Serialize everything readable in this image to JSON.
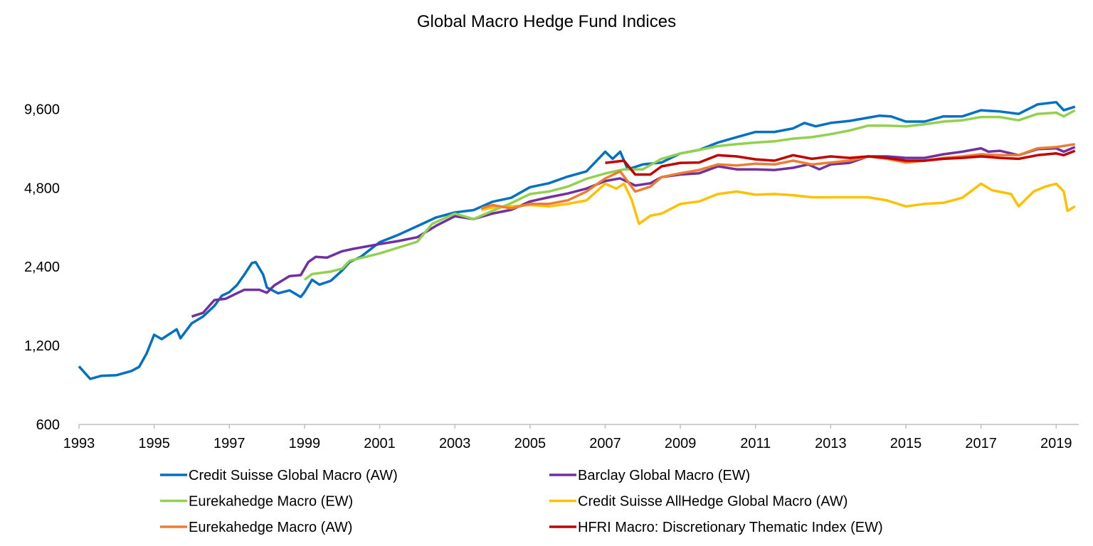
{
  "chart_data": {
    "type": "line",
    "title": "Global Macro Hedge Fund Indices",
    "xlabel": "",
    "ylabel": "",
    "y_scale": "log2",
    "ylim": [
      600,
      15000
    ],
    "xlim": [
      1993,
      2019.6
    ],
    "grid": false,
    "legend_placement": "bottom",
    "y_ticks": [
      600,
      1200,
      2400,
      4800,
      9600
    ],
    "y_tick_labels": [
      "600",
      "1,200",
      "2,400",
      "4,800",
      "9,600"
    ],
    "x_ticks": [
      1993,
      1995,
      1997,
      1999,
      2001,
      2003,
      2005,
      2007,
      2009,
      2011,
      2013,
      2015,
      2017,
      2019
    ],
    "x_tick_labels": [
      "1993",
      "1995",
      "1997",
      "1999",
      "2001",
      "2003",
      "2005",
      "2007",
      "2009",
      "2011",
      "2013",
      "2015",
      "2017",
      "2019"
    ],
    "series": [
      {
        "name": "Credit Suisse Global Macro (AW)",
        "color": "#0070C0",
        "x": [
          1993.0,
          1993.3,
          1993.6,
          1994.0,
          1994.4,
          1994.6,
          1994.8,
          1995.0,
          1995.2,
          1995.6,
          1995.7,
          1996.0,
          1996.3,
          1996.6,
          1996.8,
          1997.0,
          1997.2,
          1997.4,
          1997.6,
          1997.7,
          1997.9,
          1998.0,
          1998.3,
          1998.6,
          1998.9,
          1999.0,
          1999.2,
          1999.4,
          1999.7,
          2000.0,
          2000.2,
          2000.5,
          2001.0,
          2001.5,
          2002.0,
          2002.5,
          2003.0,
          2003.5,
          2004.0,
          2004.5,
          2005.0,
          2005.5,
          2006.0,
          2006.5,
          2007.0,
          2007.2,
          2007.4,
          2007.6,
          2008.0,
          2008.5,
          2009.0,
          2009.5,
          2010.0,
          2010.5,
          2011.0,
          2011.5,
          2012.0,
          2012.3,
          2012.6,
          2013.0,
          2013.5,
          2014.0,
          2014.3,
          2014.6,
          2015.0,
          2015.5,
          2016.0,
          2016.5,
          2017.0,
          2017.5,
          2018.0,
          2018.5,
          2019.0,
          2019.2,
          2019.5
        ],
        "values": [
          1000,
          895,
          920,
          925,
          960,
          995,
          1120,
          1320,
          1270,
          1385,
          1280,
          1460,
          1550,
          1700,
          1860,
          1920,
          2040,
          2240,
          2480,
          2500,
          2240,
          2000,
          1900,
          1950,
          1840,
          1920,
          2140,
          2050,
          2120,
          2320,
          2500,
          2620,
          2980,
          3180,
          3430,
          3700,
          3870,
          3950,
          4250,
          4400,
          4830,
          5000,
          5300,
          5550,
          6600,
          6200,
          6600,
          5650,
          5900,
          6000,
          6500,
          6700,
          7150,
          7500,
          7850,
          7850,
          8100,
          8500,
          8250,
          8500,
          8650,
          8900,
          9060,
          9000,
          8600,
          8600,
          9000,
          9000,
          9500,
          9400,
          9200,
          10000,
          10200,
          9500,
          9800
        ]
      },
      {
        "name": "Barclay Global Macro (EW)",
        "color": "#7030A0",
        "x": [
          1996.0,
          1996.3,
          1996.6,
          1996.9,
          1997.2,
          1997.4,
          1997.8,
          1998.0,
          1998.2,
          1998.6,
          1998.9,
          1999.1,
          1999.3,
          1999.6,
          2000.0,
          2000.3,
          2001.0,
          2001.5,
          2002.0,
          2002.5,
          2003.0,
          2003.5,
          2004.0,
          2004.5,
          2005.0,
          2005.5,
          2006.0,
          2006.5,
          2007.0,
          2007.4,
          2007.8,
          2008.2,
          2008.5,
          2009.0,
          2009.5,
          2010.0,
          2010.5,
          2011.0,
          2011.5,
          2012.0,
          2012.4,
          2012.7,
          2013.0,
          2013.5,
          2014.0,
          2014.5,
          2015.0,
          2015.5,
          2016.0,
          2016.5,
          2017.0,
          2017.2,
          2017.5,
          2018.0,
          2018.5,
          2019.0,
          2019.2,
          2019.5
        ],
        "values": [
          1550,
          1600,
          1790,
          1810,
          1900,
          1960,
          1960,
          1910,
          2040,
          2210,
          2230,
          2500,
          2620,
          2600,
          2750,
          2810,
          2930,
          3010,
          3110,
          3440,
          3740,
          3650,
          3830,
          3960,
          4260,
          4420,
          4570,
          4770,
          5100,
          5220,
          4900,
          5000,
          5280,
          5400,
          5460,
          5800,
          5650,
          5650,
          5620,
          5730,
          5900,
          5650,
          5900,
          5980,
          6330,
          6330,
          6250,
          6250,
          6450,
          6600,
          6800,
          6600,
          6650,
          6400,
          6750,
          6800,
          6600,
          6870
        ]
      },
      {
        "name": "Eurekahedge Macro (EW)",
        "color": "#92D050",
        "x": [
          1999.0,
          1999.2,
          1999.7,
          2000.0,
          2000.2,
          2001.0,
          2002.0,
          2002.4,
          2003.0,
          2003.5,
          2004.0,
          2004.5,
          2005.0,
          2005.5,
          2006.0,
          2006.5,
          2007.0,
          2007.5,
          2008.0,
          2008.5,
          2009.0,
          2009.5,
          2010.0,
          2010.5,
          2011.0,
          2011.5,
          2012.0,
          2012.5,
          2013.0,
          2013.5,
          2014.0,
          2014.5,
          2015.0,
          2015.5,
          2016.0,
          2016.5,
          2017.0,
          2017.5,
          2018.0,
          2018.5,
          2019.0,
          2019.2,
          2019.5
        ],
        "values": [
          2140,
          2250,
          2300,
          2360,
          2530,
          2700,
          2990,
          3500,
          3830,
          3650,
          3920,
          4200,
          4550,
          4650,
          4850,
          5200,
          5450,
          5650,
          5650,
          6200,
          6500,
          6700,
          6930,
          7050,
          7150,
          7230,
          7400,
          7500,
          7700,
          7950,
          8300,
          8300,
          8250,
          8400,
          8600,
          8700,
          8950,
          8950,
          8700,
          9200,
          9300,
          9000,
          9500
        ]
      },
      {
        "name": "Credit Suisse AllHedge Global Macro (AW)",
        "color": "#FFC000",
        "x": [
          2003.7,
          2004.0,
          2004.5,
          2005.0,
          2005.5,
          2006.0,
          2006.5,
          2007.0,
          2007.3,
          2007.5,
          2007.7,
          2007.9,
          2008.2,
          2008.5,
          2009.0,
          2009.5,
          2010.0,
          2010.5,
          2011.0,
          2011.5,
          2012.0,
          2012.5,
          2013.0,
          2013.5,
          2014.0,
          2014.5,
          2015.0,
          2015.5,
          2016.0,
          2016.5,
          2017.0,
          2017.3,
          2017.8,
          2018.0,
          2018.4,
          2018.7,
          2019.0,
          2019.2,
          2019.3,
          2019.5
        ],
        "values": [
          3960,
          4040,
          4080,
          4130,
          4080,
          4170,
          4300,
          4980,
          4770,
          4980,
          4350,
          3500,
          3760,
          3830,
          4170,
          4260,
          4550,
          4650,
          4520,
          4550,
          4500,
          4420,
          4420,
          4420,
          4420,
          4300,
          4080,
          4170,
          4210,
          4400,
          4980,
          4700,
          4550,
          4080,
          4650,
          4850,
          4980,
          4650,
          3920,
          4080
        ]
      },
      {
        "name": "Eurekahedge Macro (AW)",
        "color": "#ED7D31",
        "x": [
          2003.7,
          2004.0,
          2004.5,
          2005.0,
          2005.5,
          2006.0,
          2006.5,
          2007.0,
          2007.4,
          2007.8,
          2008.2,
          2008.5,
          2009.0,
          2009.5,
          2010.0,
          2010.5,
          2011.0,
          2011.5,
          2012.0,
          2012.5,
          2013.0,
          2013.5,
          2014.0,
          2014.5,
          2015.0,
          2015.5,
          2016.0,
          2016.5,
          2017.0,
          2017.5,
          2018.0,
          2018.5,
          2019.0,
          2019.5
        ],
        "values": [
          4010,
          4130,
          4010,
          4170,
          4170,
          4300,
          4650,
          5220,
          5550,
          4650,
          4850,
          5280,
          5460,
          5620,
          5900,
          5850,
          5940,
          5900,
          6100,
          5900,
          6000,
          6100,
          6330,
          6200,
          6000,
          6100,
          6250,
          6330,
          6450,
          6400,
          6400,
          6800,
          6870,
          7050
        ]
      },
      {
        "name": "HFRI Macro: Discretionary Thematic Index (EW)",
        "color": "#C00000",
        "x": [
          2007.0,
          2007.5,
          2007.8,
          2008.2,
          2008.5,
          2009.0,
          2009.5,
          2010.0,
          2010.5,
          2011.0,
          2011.5,
          2012.0,
          2012.5,
          2013.0,
          2013.5,
          2014.0,
          2014.5,
          2015.0,
          2015.5,
          2016.0,
          2016.5,
          2017.0,
          2017.5,
          2018.0,
          2018.5,
          2019.0,
          2019.2,
          2019.5
        ],
        "values": [
          5980,
          6100,
          5400,
          5400,
          5800,
          5980,
          6000,
          6400,
          6330,
          6170,
          6100,
          6400,
          6200,
          6330,
          6250,
          6330,
          6250,
          6100,
          6100,
          6200,
          6250,
          6330,
          6250,
          6200,
          6400,
          6500,
          6400,
          6650
        ]
      }
    ],
    "legend_order": [
      0,
      1,
      2,
      3,
      4,
      5
    ]
  }
}
